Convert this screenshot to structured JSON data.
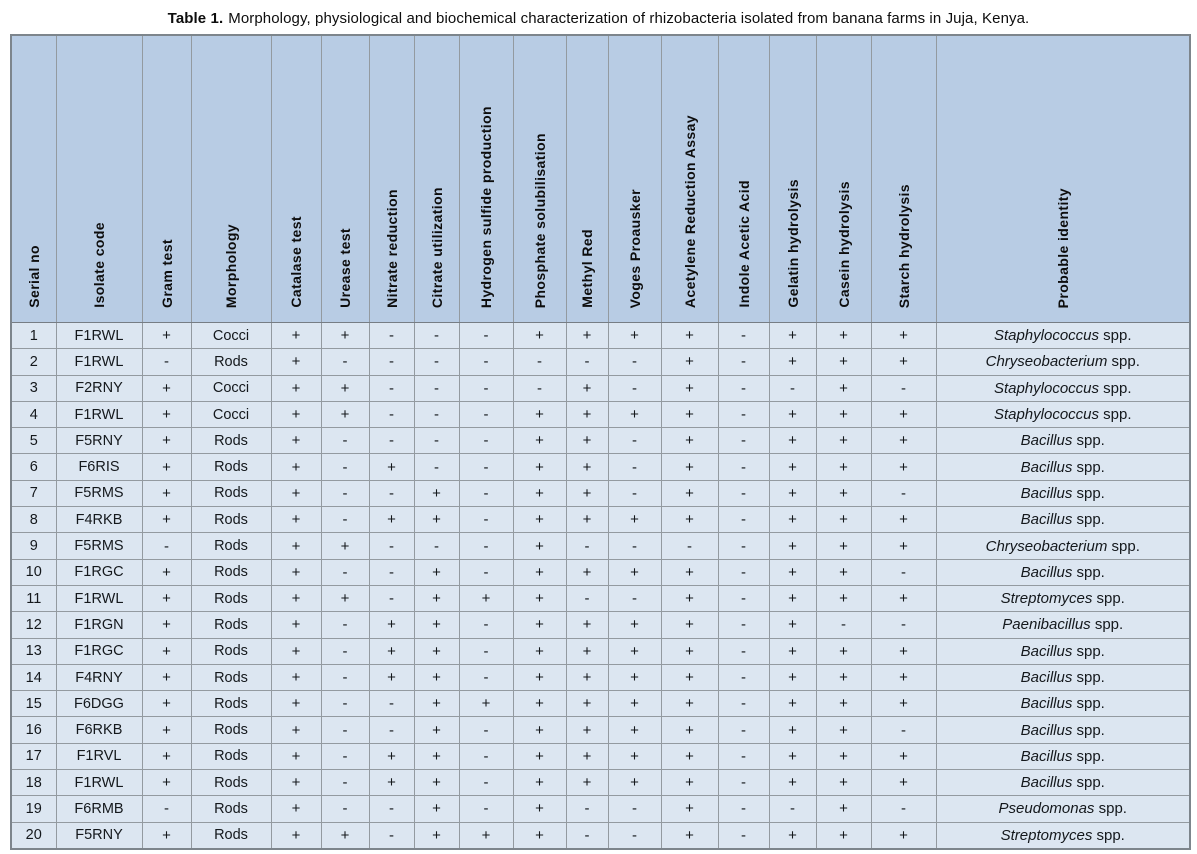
{
  "title": {
    "label": "Table 1.",
    "text": "Morphology, physiological and biochemical characterization of rhizobacteria isolated from banana farms in Juja, Kenya."
  },
  "colors": {
    "header_bg": "#b8cce4",
    "row_bg": "#dce6f1",
    "border": "#939aa0",
    "text": "#111111"
  },
  "table": {
    "columns": [
      "Serial no",
      "Isolate code",
      "Gram test",
      "Morphology",
      "Catalase test",
      "Urease test",
      "Nitrate reduction",
      "Citrate utilization",
      "Hydrogen sulfide production",
      "Phosphate solubilisation",
      "Methyl Red",
      "Voges Proausker",
      "Acetylene Reduction Assay",
      "Indole Acetic Acid",
      "Gelatin hydrolysis",
      "Casein hydrolysis",
      "Starch hydrolysis",
      "Probable identity"
    ],
    "rows": [
      {
        "serial": "1",
        "isolate": "F1RWL",
        "gram": "+",
        "morphology": "Cocci",
        "tests": [
          "+",
          "+",
          "-",
          "-",
          "-",
          "+",
          "+",
          "+",
          "+",
          "-",
          "+",
          "+",
          "+"
        ],
        "genus": "Staphylococcus",
        "suffix": "spp."
      },
      {
        "serial": "2",
        "isolate": "F1RWL",
        "gram": "-",
        "morphology": "Rods",
        "tests": [
          "+",
          "-",
          "-",
          "-",
          "-",
          "-",
          "-",
          "-",
          "+",
          "-",
          "+",
          "+",
          "+"
        ],
        "genus": "Chryseobacterium",
        "suffix": "spp."
      },
      {
        "serial": "3",
        "isolate": "F2RNY",
        "gram": "+",
        "morphology": "Cocci",
        "tests": [
          "+",
          "+",
          "-",
          "-",
          "-",
          "-",
          "+",
          "-",
          "+",
          "-",
          "-",
          "+",
          "-"
        ],
        "genus": "Staphylococcus",
        "suffix": "spp."
      },
      {
        "serial": "4",
        "isolate": "F1RWL",
        "gram": "+",
        "morphology": "Cocci",
        "tests": [
          "+",
          "+",
          "-",
          "-",
          "-",
          "+",
          "+",
          "+",
          "+",
          "-",
          "+",
          "+",
          "+"
        ],
        "genus": "Staphylococcus",
        "suffix": "spp."
      },
      {
        "serial": "5",
        "isolate": "F5RNY",
        "gram": "+",
        "morphology": "Rods",
        "tests": [
          "+",
          "-",
          "-",
          "-",
          "-",
          "+",
          "+",
          "-",
          "+",
          "-",
          "+",
          "+",
          "+"
        ],
        "genus": "Bacillus",
        "suffix": "spp."
      },
      {
        "serial": "6",
        "isolate": "F6RIS",
        "gram": "+",
        "morphology": "Rods",
        "tests": [
          "+",
          "-",
          "+",
          "-",
          "-",
          "+",
          "+",
          "-",
          "+",
          "-",
          "+",
          "+",
          "+"
        ],
        "genus": "Bacillus",
        "suffix": "spp."
      },
      {
        "serial": "7",
        "isolate": "F5RMS",
        "gram": "+",
        "morphology": "Rods",
        "tests": [
          "+",
          "-",
          "-",
          "+",
          "-",
          "+",
          "+",
          "-",
          "+",
          "-",
          "+",
          "+",
          "-"
        ],
        "genus": "Bacillus",
        "suffix": "spp."
      },
      {
        "serial": "8",
        "isolate": "F4RKB",
        "gram": "+",
        "morphology": "Rods",
        "tests": [
          "+",
          "-",
          "+",
          "+",
          "-",
          "+",
          "+",
          "+",
          "+",
          "-",
          "+",
          "+",
          "+"
        ],
        "genus": "Bacillus",
        "suffix": "spp."
      },
      {
        "serial": "9",
        "isolate": "F5RMS",
        "gram": "-",
        "morphology": "Rods",
        "tests": [
          "+",
          "+",
          "-",
          "-",
          "-",
          "+",
          "-",
          "-",
          "-",
          "-",
          "+",
          "+",
          "+"
        ],
        "genus": "Chryseobacterium",
        "suffix": "spp."
      },
      {
        "serial": "10",
        "isolate": "F1RGC",
        "gram": "+",
        "morphology": "Rods",
        "tests": [
          "+",
          "-",
          "-",
          "+",
          "-",
          "+",
          "+",
          "+",
          "+",
          "-",
          "+",
          "+",
          "-"
        ],
        "genus": "Bacillus",
        "suffix": "spp."
      },
      {
        "serial": "11",
        "isolate": "F1RWL",
        "gram": "+",
        "morphology": "Rods",
        "tests": [
          "+",
          "+",
          "-",
          "+",
          "+",
          "+",
          "-",
          "-",
          "+",
          "-",
          "+",
          "+",
          "+"
        ],
        "genus": "Streptomyces",
        "suffix": "spp."
      },
      {
        "serial": "12",
        "isolate": "F1RGN",
        "gram": "+",
        "morphology": "Rods",
        "tests": [
          "+",
          "-",
          "+",
          "+",
          "-",
          "+",
          "+",
          "+",
          "+",
          "-",
          "+",
          "-",
          "-"
        ],
        "genus": "Paenibacillus",
        "suffix": "spp."
      },
      {
        "serial": "13",
        "isolate": "F1RGC",
        "gram": "+",
        "morphology": "Rods",
        "tests": [
          "+",
          "-",
          "+",
          "+",
          "-",
          "+",
          "+",
          "+",
          "+",
          "-",
          "+",
          "+",
          "+"
        ],
        "genus": "Bacillus",
        "suffix": "spp."
      },
      {
        "serial": "14",
        "isolate": "F4RNY",
        "gram": "+",
        "morphology": "Rods",
        "tests": [
          "+",
          "-",
          "+",
          "+",
          "-",
          "+",
          "+",
          "+",
          "+",
          "-",
          "+",
          "+",
          "+"
        ],
        "genus": "Bacillus",
        "suffix": "spp."
      },
      {
        "serial": "15",
        "isolate": "F6DGG",
        "gram": "+",
        "morphology": "Rods",
        "tests": [
          "+",
          "-",
          "-",
          "+",
          "+",
          "+",
          "+",
          "+",
          "+",
          "-",
          "+",
          "+",
          "+"
        ],
        "genus": "Bacillus",
        "suffix": "spp."
      },
      {
        "serial": "16",
        "isolate": "F6RKB",
        "gram": "+",
        "morphology": "Rods",
        "tests": [
          "+",
          "-",
          "-",
          "+",
          "-",
          "+",
          "+",
          "+",
          "+",
          "-",
          "+",
          "+",
          "-"
        ],
        "genus": "Bacillus",
        "suffix": "spp."
      },
      {
        "serial": "17",
        "isolate": "F1RVL",
        "gram": "+",
        "morphology": "Rods",
        "tests": [
          "+",
          "-",
          "+",
          "+",
          "-",
          "+",
          "+",
          "+",
          "+",
          "-",
          "+",
          "+",
          "+"
        ],
        "genus": "Bacillus",
        "suffix": "spp."
      },
      {
        "serial": "18",
        "isolate": "F1RWL",
        "gram": "+",
        "morphology": "Rods",
        "tests": [
          "+",
          "-",
          "+",
          "+",
          "-",
          "+",
          "+",
          "+",
          "+",
          "-",
          "+",
          "+",
          "+"
        ],
        "genus": "Bacillus",
        "suffix": "spp."
      },
      {
        "serial": "19",
        "isolate": "F6RMB",
        "gram": "-",
        "morphology": "Rods",
        "tests": [
          "+",
          "-",
          "-",
          "+",
          "-",
          "+",
          "-",
          "-",
          "+",
          "-",
          "-",
          "+",
          "-"
        ],
        "genus": "Pseudomonas",
        "suffix": "spp."
      },
      {
        "serial": "20",
        "isolate": "F5RNY",
        "gram": "+",
        "morphology": "Rods",
        "tests": [
          "+",
          "+",
          "-",
          "+",
          "+",
          "+",
          "-",
          "-",
          "+",
          "-",
          "+",
          "+",
          "+"
        ],
        "genus": "Streptomyces",
        "suffix": "spp."
      }
    ]
  }
}
